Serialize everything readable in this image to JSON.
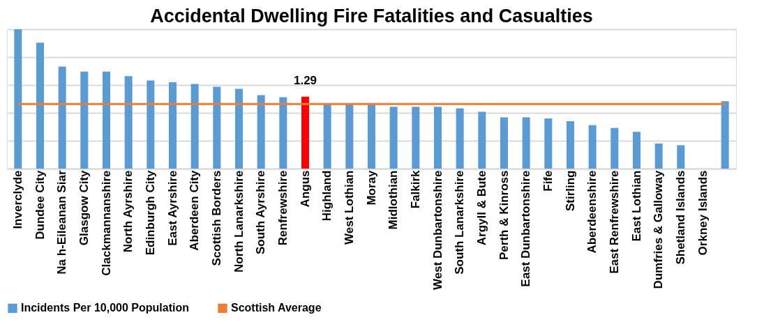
{
  "chart_data": {
    "type": "bar",
    "title": "Accidental Dwelling Fire Fatalities and Casualties",
    "categories": [
      "Inverclyde",
      "Dundee City",
      "Na h-Eileanan Siar",
      "Glasgow City",
      "Clackmannanshire",
      "North Ayrshire",
      "Edinburgh City",
      "East Ayrshire",
      "Aberdeen City",
      "Scottish Borders",
      "North Lanarkshire",
      "South Ayrshire",
      "Renfrewshire",
      "Angus",
      "Highland",
      "West Lothian",
      "Moray",
      "Midlothian",
      "Falkirk",
      "West Dunbartonshire",
      "South Lanarkshire",
      "Argyll & Bute",
      "Perth & Kinross",
      "East Dunbartonshire",
      "Fife",
      "Stirling",
      "Aberdeenshire",
      "East Renfrewshire",
      "East Lothian",
      "Dumfries & Galloway",
      "Shetland Islands",
      "Orkney Islands",
      null
    ],
    "series": [
      {
        "name": "Incidents Per 10,000 Population",
        "color": "#5b9bd5",
        "colors": [
          "#5b9bd5",
          "#5b9bd5",
          "#5b9bd5",
          "#5b9bd5",
          "#5b9bd5",
          "#5b9bd5",
          "#5b9bd5",
          "#5b9bd5",
          "#5b9bd5",
          "#5b9bd5",
          "#5b9bd5",
          "#5b9bd5",
          "#5b9bd5",
          "#ff0000",
          "#5b9bd5",
          "#5b9bd5",
          "#5b9bd5",
          "#5b9bd5",
          "#5b9bd5",
          "#5b9bd5",
          "#5b9bd5",
          "#5b9bd5",
          "#5b9bd5",
          "#5b9bd5",
          "#5b9bd5",
          "#5b9bd5",
          "#5b9bd5",
          "#5b9bd5",
          "#5b9bd5",
          "#5b9bd5",
          "#5b9bd5",
          "#5b9bd5",
          "#5b9bd5"
        ],
        "values": [
          2.5,
          2.26,
          1.83,
          1.74,
          1.74,
          1.66,
          1.58,
          1.55,
          1.52,
          1.47,
          1.43,
          1.32,
          1.28,
          1.29,
          1.16,
          1.15,
          1.15,
          1.11,
          1.11,
          1.11,
          1.08,
          1.02,
          0.92,
          0.92,
          0.9,
          0.85,
          0.78,
          0.73,
          0.66,
          0.45,
          0.42,
          0,
          1.21
        ],
        "value_labels": [
          null,
          null,
          null,
          null,
          null,
          null,
          null,
          null,
          null,
          null,
          null,
          null,
          null,
          "1.29",
          null,
          null,
          null,
          null,
          null,
          null,
          null,
          null,
          null,
          null,
          null,
          null,
          null,
          null,
          null,
          null,
          null,
          null,
          null
        ]
      },
      {
        "name": "Scottish Average",
        "type": "line",
        "color": "#ed7d31",
        "values": [
          1.16,
          1.16,
          1.16,
          1.16,
          1.16,
          1.16,
          1.16,
          1.16,
          1.16,
          1.16,
          1.16,
          1.16,
          1.16,
          1.16,
          1.16,
          1.16,
          1.16,
          1.16,
          1.16,
          1.16,
          1.16,
          1.16,
          1.16,
          1.16,
          1.16,
          1.16,
          1.16,
          1.16,
          1.16,
          1.16,
          1.16,
          1.16,
          1.16
        ]
      }
    ],
    "ylim": [
      0,
      2.5
    ],
    "tick_labels": "x",
    "grid": "y",
    "legend": "bottom"
  }
}
